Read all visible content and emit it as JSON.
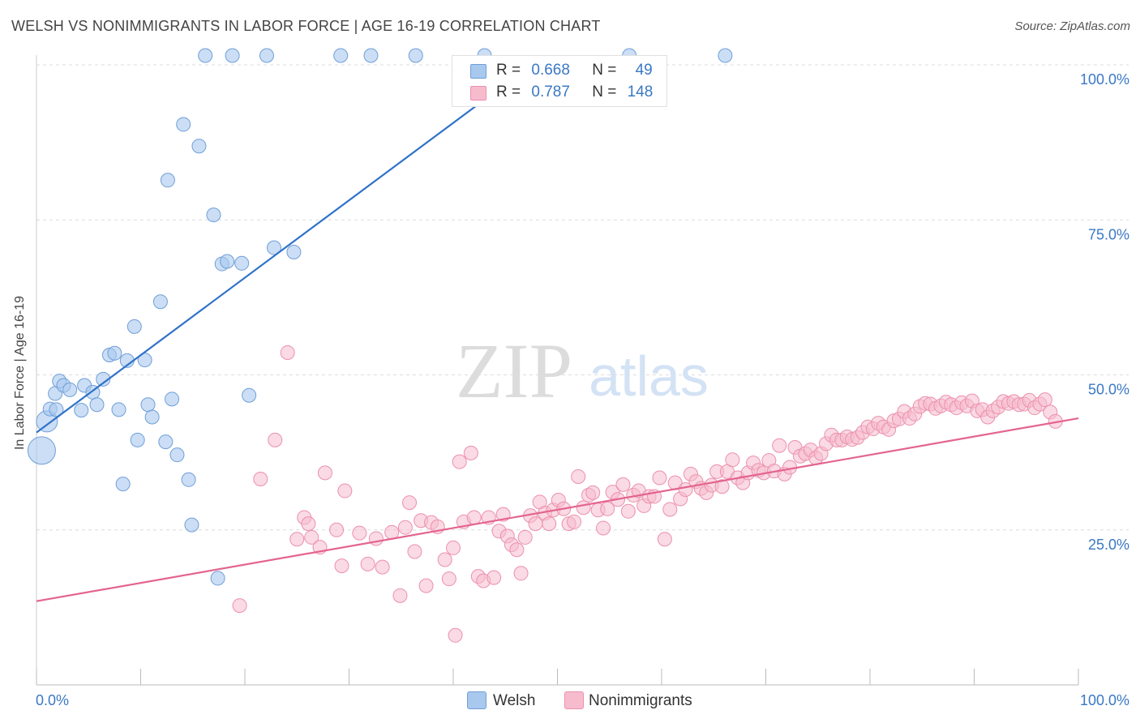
{
  "title": "WELSH VS NONIMMIGRANTS IN LABOR FORCE | AGE 16-19 CORRELATION CHART",
  "source": "Source: ZipAtlas.com",
  "watermark": {
    "zip": "ZIP",
    "atlas": "atlas"
  },
  "legend": {
    "welsh": {
      "r_label": "R =",
      "r": "0.668",
      "n_label": "N =",
      "n": "49"
    },
    "nonimmigrants": {
      "r_label": "R =",
      "r": "0.787",
      "n_label": "N =",
      "n": "148"
    }
  },
  "colors": {
    "welsh_fill": "#a9c8ee",
    "welsh_stroke": "#6f9fd8",
    "welsh_line": "#2f72c8",
    "nonimm_fill": "#f6bccd",
    "nonimm_stroke": "#ec90ad",
    "nonimm_line": "#e4648f",
    "axis_text": "#3a78c4",
    "grid": "#dcdcdc"
  },
  "chart_data": {
    "type": "scatter",
    "title": "WELSH VS NONIMMIGRANTS IN LABOR FORCE | AGE 16-19 CORRELATION CHART",
    "xlabel": "",
    "ylabel": "In Labor Force | Age 16-19",
    "xlim": [
      0,
      100
    ],
    "ylim": [
      0,
      100
    ],
    "x_tick_labels": [
      "0.0%",
      "100.0%"
    ],
    "y_tick_labels": [
      "25.0%",
      "50.0%",
      "75.0%",
      "100.0%"
    ],
    "y_ticks": [
      25,
      50,
      75,
      100
    ],
    "grid": "horizontal dashed",
    "legend_position": "top-center",
    "series": [
      {
        "name": "Welsh",
        "r": 0.668,
        "n": 49,
        "trend": {
          "x": [
            0,
            47.5
          ],
          "y": [
            40.7,
            100
          ]
        },
        "points": [
          [
            0.5,
            37.8,
            3
          ],
          [
            1,
            42.5,
            2
          ],
          [
            1.3,
            44.5,
            1
          ],
          [
            1.8,
            47,
            1
          ],
          [
            2.2,
            49,
            1
          ],
          [
            2.6,
            48.3,
            1
          ],
          [
            3.2,
            47.6,
            1
          ],
          [
            4.3,
            44.3,
            1
          ],
          [
            4.6,
            48.3,
            1
          ],
          [
            5.4,
            47.2,
            1
          ],
          [
            5.8,
            45.2,
            1
          ],
          [
            6.4,
            49.3,
            1
          ],
          [
            7,
            53.2,
            1
          ],
          [
            7.5,
            53.5,
            1
          ],
          [
            7.9,
            44.4,
            1
          ],
          [
            8.3,
            32.4,
            1
          ],
          [
            8.7,
            52.3,
            1
          ],
          [
            9.4,
            57.8,
            1
          ],
          [
            9.7,
            39.5,
            1
          ],
          [
            10.4,
            52.4,
            1
          ],
          [
            10.7,
            45.2,
            1
          ],
          [
            11.1,
            43.2,
            1
          ],
          [
            11.9,
            61.8,
            1
          ],
          [
            12.4,
            39.2,
            1
          ],
          [
            12.6,
            81.4,
            1
          ],
          [
            13,
            46.1,
            1
          ],
          [
            13.5,
            37.1,
            1
          ],
          [
            14.1,
            90.4,
            1
          ],
          [
            14.6,
            33.1,
            1
          ],
          [
            14.9,
            25.8,
            1
          ],
          [
            15.6,
            86.9,
            1
          ],
          [
            16.2,
            101.5,
            1
          ],
          [
            17,
            75.8,
            1
          ],
          [
            17.4,
            17.2,
            1
          ],
          [
            17.8,
            67.9,
            1
          ],
          [
            18.3,
            68.3,
            1
          ],
          [
            18.8,
            101.5,
            1
          ],
          [
            19.7,
            68,
            1
          ],
          [
            20.4,
            46.7,
            1
          ],
          [
            22.1,
            101.5,
            1
          ],
          [
            22.8,
            70.5,
            1
          ],
          [
            24.7,
            69.8,
            1
          ],
          [
            29.2,
            101.5,
            1
          ],
          [
            32.1,
            101.5,
            1
          ],
          [
            36.4,
            101.5,
            1
          ],
          [
            43,
            101.5,
            1
          ],
          [
            56.9,
            101.5,
            1
          ],
          [
            66.1,
            101.5,
            1
          ],
          [
            1.9,
            44.4,
            1
          ]
        ]
      },
      {
        "name": "Nonimmigrants",
        "r": 0.787,
        "n": 148,
        "trend": {
          "x": [
            0,
            100
          ],
          "y": [
            13.5,
            43
          ]
        },
        "points": [
          [
            19.5,
            12.8
          ],
          [
            21.5,
            33.2
          ],
          [
            22.9,
            39.5
          ],
          [
            24.1,
            53.6
          ],
          [
            25,
            23.5
          ],
          [
            25.7,
            27
          ],
          [
            26.1,
            26
          ],
          [
            26.4,
            23.8
          ],
          [
            27.2,
            22.2
          ],
          [
            27.7,
            34.2
          ],
          [
            28.8,
            25
          ],
          [
            29.3,
            19.2
          ],
          [
            29.6,
            31.3
          ],
          [
            31,
            24.5
          ],
          [
            31.8,
            19.5
          ],
          [
            32.6,
            23.6
          ],
          [
            33.2,
            19
          ],
          [
            34.1,
            24.6
          ],
          [
            34.9,
            14.4
          ],
          [
            35.4,
            25.4
          ],
          [
            35.8,
            29.4
          ],
          [
            36.3,
            21.5
          ],
          [
            36.9,
            26.5
          ],
          [
            37.4,
            16
          ],
          [
            37.9,
            26.2
          ],
          [
            38.5,
            25.5
          ],
          [
            39.2,
            20.2
          ],
          [
            39.6,
            17.1
          ],
          [
            40,
            22.1
          ],
          [
            40.2,
            8
          ],
          [
            40.6,
            36
          ],
          [
            41,
            26.3
          ],
          [
            41.7,
            37.4
          ],
          [
            42,
            27
          ],
          [
            42.4,
            17.5
          ],
          [
            42.9,
            16.8
          ],
          [
            43.4,
            27
          ],
          [
            43.9,
            17.3
          ],
          [
            44.4,
            24.8
          ],
          [
            44.8,
            27.5
          ],
          [
            45.2,
            24
          ],
          [
            45.6,
            22.6
          ],
          [
            46.1,
            21.8
          ],
          [
            46.5,
            18
          ],
          [
            46.9,
            23.8
          ],
          [
            47.4,
            27.3
          ],
          [
            47.9,
            26
          ],
          [
            48.3,
            29.5
          ],
          [
            48.8,
            27.7
          ],
          [
            49.2,
            26
          ],
          [
            49.6,
            28.2
          ],
          [
            50.1,
            29.8
          ],
          [
            50.6,
            28.4
          ],
          [
            51.1,
            26
          ],
          [
            51.6,
            26.3
          ],
          [
            52,
            33.6
          ],
          [
            52.5,
            28.6
          ],
          [
            53,
            30.6
          ],
          [
            53.4,
            31
          ],
          [
            53.9,
            28.2
          ],
          [
            54.4,
            25.3
          ],
          [
            54.8,
            28.4
          ],
          [
            55.3,
            31.1
          ],
          [
            55.8,
            29.9
          ],
          [
            56.3,
            32.3
          ],
          [
            56.8,
            28
          ],
          [
            57.3,
            30.6
          ],
          [
            57.8,
            31.3
          ],
          [
            58.3,
            28.9
          ],
          [
            58.8,
            30.4
          ],
          [
            59.3,
            30.4
          ],
          [
            59.8,
            33.4
          ],
          [
            60.3,
            23.5
          ],
          [
            60.8,
            28.3
          ],
          [
            61.3,
            32.6
          ],
          [
            61.8,
            30
          ],
          [
            62.3,
            31.5
          ],
          [
            62.8,
            34
          ],
          [
            63.3,
            32.8
          ],
          [
            63.8,
            31.7
          ],
          [
            64.3,
            31
          ],
          [
            64.8,
            32.2
          ],
          [
            65.3,
            34.4
          ],
          [
            65.8,
            32
          ],
          [
            66.3,
            34.4
          ],
          [
            66.8,
            36.3
          ],
          [
            67.3,
            33.4
          ],
          [
            67.8,
            32.6
          ],
          [
            68.3,
            34.2
          ],
          [
            68.8,
            35.8
          ],
          [
            69.3,
            34.6
          ],
          [
            69.8,
            34.2
          ],
          [
            70.3,
            36.2
          ],
          [
            70.8,
            34.5
          ],
          [
            71.3,
            38.6
          ],
          [
            71.8,
            34
          ],
          [
            72.3,
            35.1
          ],
          [
            72.8,
            38.3
          ],
          [
            73.3,
            36.9
          ],
          [
            73.8,
            37.3
          ],
          [
            74.3,
            37.9
          ],
          [
            74.8,
            36.6
          ],
          [
            75.3,
            37.3
          ],
          [
            75.8,
            38.9
          ],
          [
            76.3,
            40.3
          ],
          [
            76.8,
            39.5
          ],
          [
            77.3,
            39.5
          ],
          [
            77.8,
            40
          ],
          [
            78.3,
            39.6
          ],
          [
            78.8,
            39.9
          ],
          [
            79.3,
            40.7
          ],
          [
            79.8,
            41.6
          ],
          [
            80.3,
            41.3
          ],
          [
            80.8,
            42.2
          ],
          [
            81.3,
            41.6
          ],
          [
            81.8,
            41.2
          ],
          [
            82.3,
            42.6
          ],
          [
            82.8,
            42.9
          ],
          [
            83.3,
            44.1
          ],
          [
            83.8,
            43
          ],
          [
            84.3,
            43.7
          ],
          [
            84.8,
            44.9
          ],
          [
            85.3,
            45.4
          ],
          [
            85.8,
            45.3
          ],
          [
            86.3,
            44.6
          ],
          [
            86.8,
            45
          ],
          [
            87.3,
            45.6
          ],
          [
            87.8,
            45.2
          ],
          [
            88.3,
            44.7
          ],
          [
            88.8,
            45.5
          ],
          [
            89.3,
            45
          ],
          [
            89.8,
            45.8
          ],
          [
            90.3,
            44.2
          ],
          [
            90.8,
            44.4
          ],
          [
            91.3,
            43.2
          ],
          [
            91.8,
            44.2
          ],
          [
            92.3,
            44.8
          ],
          [
            92.8,
            45.7
          ],
          [
            93.3,
            45.4
          ],
          [
            93.8,
            45.7
          ],
          [
            94.3,
            45.2
          ],
          [
            94.8,
            45.3
          ],
          [
            95.3,
            45.9
          ],
          [
            95.8,
            44.7
          ],
          [
            96.3,
            45.3
          ],
          [
            96.8,
            46
          ],
          [
            97.3,
            44
          ],
          [
            97.8,
            42.5
          ]
        ]
      }
    ]
  },
  "bottom_legend": {
    "welsh": "Welsh",
    "nonimmigrants": "Nonimmigrants"
  }
}
